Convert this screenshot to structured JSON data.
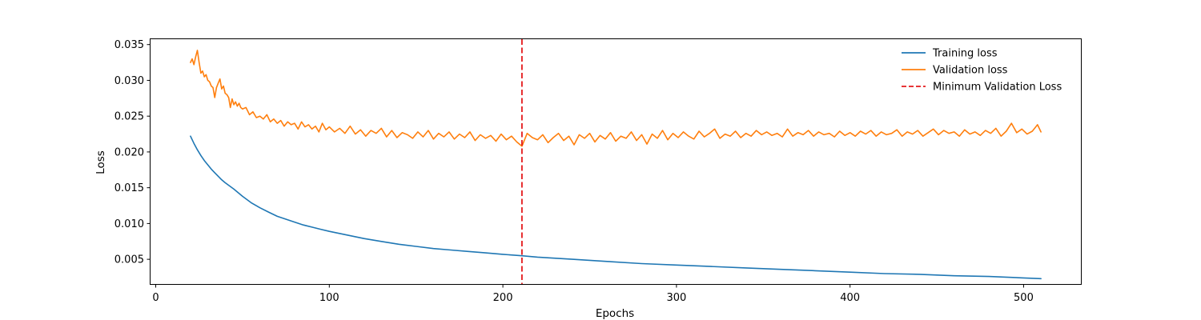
{
  "chart_data": {
    "type": "line",
    "title": "",
    "xlabel": "Epochs",
    "ylabel": "Loss",
    "xlim": [
      -3,
      533
    ],
    "ylim": [
      0.00155,
      0.03575
    ],
    "xticks": [
      0,
      100,
      200,
      300,
      400,
      500
    ],
    "xtick_labels": [
      "0",
      "100",
      "200",
      "300",
      "400",
      "500"
    ],
    "yticks": [
      0.005,
      0.01,
      0.015,
      0.02,
      0.025,
      0.03,
      0.035
    ],
    "ytick_labels": [
      "0.005",
      "0.010",
      "0.015",
      "0.020",
      "0.025",
      "0.030",
      "0.035"
    ],
    "grid": false,
    "legend_position": "top-right",
    "series": [
      {
        "name": "Training loss",
        "color": "#1f77b4",
        "style": "solid",
        "x": [
          20,
          22,
          24,
          26,
          28,
          30,
          32,
          34,
          36,
          38,
          40,
          45,
          50,
          55,
          60,
          65,
          70,
          75,
          80,
          85,
          90,
          95,
          100,
          110,
          120,
          130,
          140,
          150,
          160,
          170,
          180,
          190,
          200,
          211,
          220,
          240,
          260,
          280,
          300,
          320,
          340,
          360,
          380,
          400,
          420,
          440,
          460,
          480,
          500,
          510
        ],
        "y": [
          0.0222,
          0.0212,
          0.0203,
          0.0195,
          0.0188,
          0.0182,
          0.0176,
          0.0171,
          0.0166,
          0.0161,
          0.0157,
          0.0148,
          0.0138,
          0.0129,
          0.0122,
          0.0116,
          0.011,
          0.0106,
          0.0102,
          0.0098,
          0.0095,
          0.0092,
          0.0089,
          0.0084,
          0.0079,
          0.0075,
          0.0071,
          0.0068,
          0.0065,
          0.0063,
          0.0061,
          0.0059,
          0.0057,
          0.0055,
          0.0053,
          0.005,
          0.0047,
          0.0044,
          0.0042,
          0.004,
          0.0038,
          0.0036,
          0.0034,
          0.0032,
          0.003,
          0.0029,
          0.0027,
          0.0026,
          0.0024,
          0.0023
        ]
      },
      {
        "name": "Validation loss",
        "color": "#ff7f0e",
        "style": "solid",
        "x": [
          20,
          21,
          22,
          23,
          24,
          25,
          26,
          27,
          28,
          29,
          30,
          31,
          32,
          33,
          34,
          35,
          36,
          37,
          38,
          39,
          40,
          41,
          42,
          43,
          44,
          45,
          46,
          47,
          48,
          49,
          50,
          52,
          54,
          56,
          58,
          60,
          62,
          64,
          66,
          68,
          70,
          72,
          74,
          76,
          78,
          80,
          82,
          84,
          86,
          88,
          90,
          92,
          94,
          96,
          98,
          100,
          103,
          106,
          109,
          112,
          115,
          118,
          121,
          124,
          127,
          130,
          133,
          136,
          139,
          142,
          145,
          148,
          151,
          154,
          157,
          160,
          163,
          166,
          169,
          172,
          175,
          178,
          181,
          184,
          187,
          190,
          193,
          196,
          199,
          202,
          205,
          208,
          211,
          214,
          217,
          220,
          223,
          226,
          229,
          232,
          235,
          238,
          241,
          244,
          247,
          250,
          253,
          256,
          259,
          262,
          265,
          268,
          271,
          274,
          277,
          280,
          283,
          286,
          289,
          292,
          295,
          298,
          301,
          304,
          307,
          310,
          313,
          316,
          319,
          322,
          325,
          328,
          331,
          334,
          337,
          340,
          343,
          346,
          349,
          352,
          355,
          358,
          361,
          364,
          367,
          370,
          373,
          376,
          379,
          382,
          385,
          388,
          391,
          394,
          397,
          400,
          403,
          406,
          409,
          412,
          415,
          418,
          421,
          424,
          427,
          430,
          433,
          436,
          439,
          442,
          445,
          448,
          451,
          454,
          457,
          460,
          463,
          466,
          469,
          472,
          475,
          478,
          481,
          484,
          487,
          490,
          493,
          496,
          499,
          502,
          505,
          508,
          510
        ],
        "y": [
          0.0325,
          0.033,
          0.0322,
          0.0333,
          0.0342,
          0.0325,
          0.031,
          0.0313,
          0.0305,
          0.0308,
          0.03,
          0.0298,
          0.0292,
          0.029,
          0.0276,
          0.029,
          0.0296,
          0.0302,
          0.0288,
          0.0292,
          0.0282,
          0.028,
          0.0276,
          0.0262,
          0.0274,
          0.0266,
          0.027,
          0.0264,
          0.0268,
          0.0262,
          0.026,
          0.0262,
          0.0252,
          0.0256,
          0.0248,
          0.025,
          0.0246,
          0.0252,
          0.0242,
          0.0246,
          0.024,
          0.0244,
          0.0236,
          0.0242,
          0.0238,
          0.024,
          0.0232,
          0.0242,
          0.0235,
          0.0238,
          0.0232,
          0.0236,
          0.0228,
          0.024,
          0.0231,
          0.0235,
          0.0228,
          0.0233,
          0.0226,
          0.0236,
          0.0225,
          0.0231,
          0.0222,
          0.023,
          0.0226,
          0.0233,
          0.0221,
          0.023,
          0.022,
          0.0227,
          0.0224,
          0.0219,
          0.0228,
          0.0221,
          0.023,
          0.0218,
          0.0226,
          0.0221,
          0.0228,
          0.0218,
          0.0225,
          0.022,
          0.0228,
          0.0216,
          0.0224,
          0.0219,
          0.0223,
          0.0215,
          0.0225,
          0.0217,
          0.0222,
          0.0214,
          0.0208,
          0.0226,
          0.022,
          0.0217,
          0.0224,
          0.0213,
          0.022,
          0.0226,
          0.0216,
          0.0222,
          0.021,
          0.0224,
          0.0219,
          0.0226,
          0.0214,
          0.0223,
          0.0218,
          0.0227,
          0.0215,
          0.0222,
          0.0219,
          0.0228,
          0.0216,
          0.0224,
          0.0211,
          0.0225,
          0.0219,
          0.023,
          0.0217,
          0.0226,
          0.022,
          0.0228,
          0.0222,
          0.0218,
          0.0229,
          0.0221,
          0.0226,
          0.0232,
          0.0219,
          0.0225,
          0.0222,
          0.0229,
          0.022,
          0.0226,
          0.0222,
          0.023,
          0.0224,
          0.0228,
          0.0223,
          0.0226,
          0.0221,
          0.0232,
          0.0222,
          0.0227,
          0.0224,
          0.023,
          0.0222,
          0.0228,
          0.0224,
          0.0226,
          0.0221,
          0.0229,
          0.0223,
          0.0227,
          0.0222,
          0.0229,
          0.0225,
          0.023,
          0.0222,
          0.0228,
          0.0224,
          0.0226,
          0.0231,
          0.0222,
          0.0228,
          0.0225,
          0.023,
          0.0222,
          0.0227,
          0.0232,
          0.0224,
          0.023,
          0.0226,
          0.0228,
          0.0222,
          0.0231,
          0.0225,
          0.0228,
          0.0223,
          0.023,
          0.0226,
          0.0233,
          0.0222,
          0.0229,
          0.024,
          0.0227,
          0.0232,
          0.0225,
          0.0229,
          0.0238,
          0.0228
        ]
      }
    ],
    "vlines": [
      {
        "name": "Minimum Validation Loss",
        "x": 211,
        "color": "#e41a1c",
        "style": "dashed"
      }
    ]
  }
}
